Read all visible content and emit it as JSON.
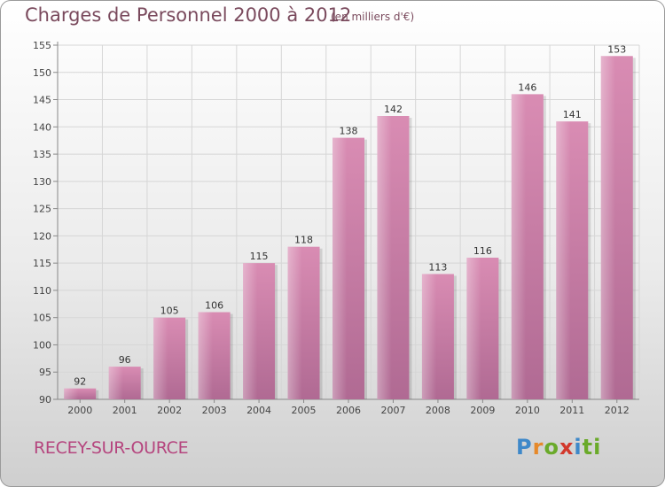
{
  "chart_data": {
    "type": "bar",
    "title": "Charges de Personnel 2000 à 2012",
    "subtitle": "(en milliers d'€)",
    "categories": [
      "2000",
      "2001",
      "2002",
      "2003",
      "2004",
      "2005",
      "2006",
      "2007",
      "2008",
      "2009",
      "2010",
      "2011",
      "2012"
    ],
    "values": [
      92,
      96,
      105,
      106,
      115,
      118,
      138,
      142,
      113,
      116,
      146,
      141,
      153
    ],
    "ylim": [
      90,
      155
    ],
    "yticks": [
      90,
      95,
      100,
      105,
      110,
      115,
      120,
      125,
      130,
      135,
      140,
      145,
      150,
      155
    ],
    "xlabel": "",
    "ylabel": "",
    "grid": true,
    "bar_color": "#d98cb3",
    "bar_color_dark": "#b06a93"
  },
  "commune_name": "RECEY-SUR-OURCE",
  "logo": {
    "letters": [
      "P",
      "r",
      "o",
      "x",
      "i",
      "ti"
    ]
  }
}
